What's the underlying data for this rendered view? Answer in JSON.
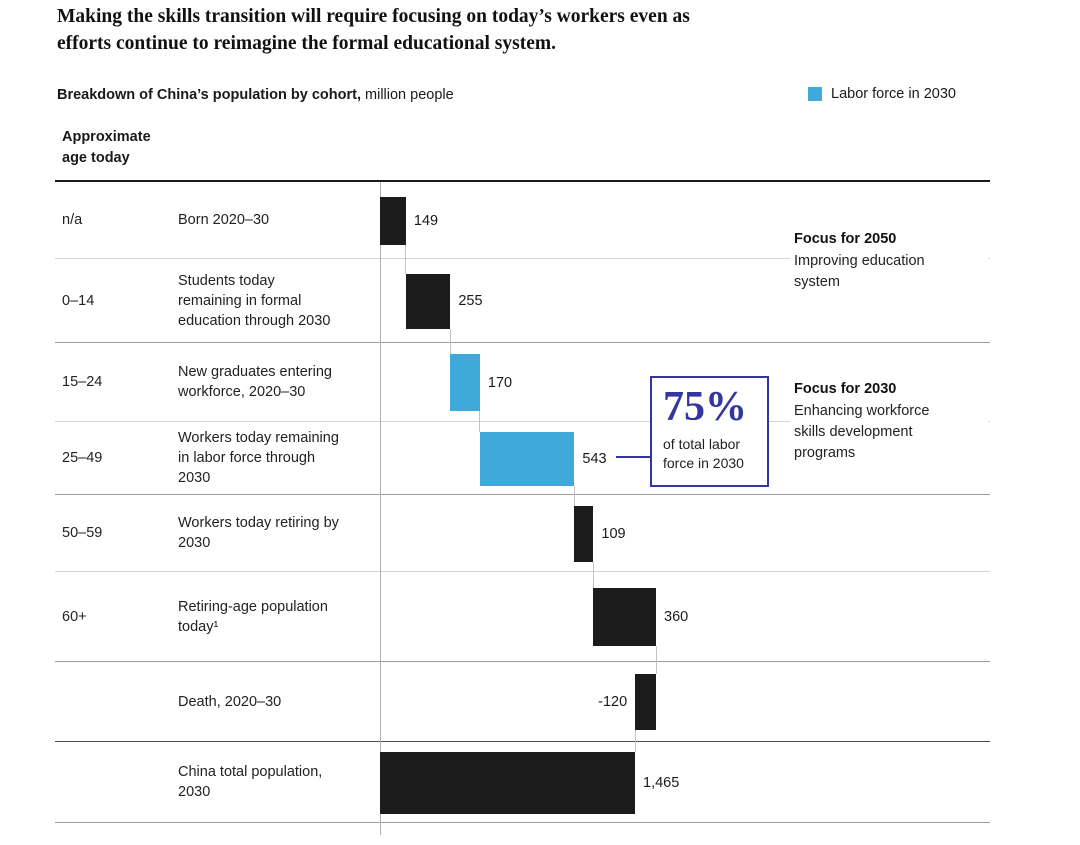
{
  "page": {
    "title": "Making the skills transition will require focusing on today’s workers even as\nefforts continue to reimagine the formal educational system.",
    "subtitle_bold": "Breakdown of China’s population by cohort,",
    "subtitle_regular": " million people",
    "legend": {
      "label": "Labor force in 2030",
      "color": "#3fa9dc"
    },
    "col_header": "Approximate\nage today"
  },
  "chart_data": {
    "type": "bar",
    "subtype": "waterfall",
    "title": "Breakdown of China's population by cohort",
    "unit": "million people",
    "colors": {
      "black": "#1b1b1b",
      "blue": "#3fa9dc"
    },
    "axis_baseline": 0,
    "total": 1465,
    "rows": [
      {
        "age": "n/a",
        "label": "Born 2020–30",
        "value": 149,
        "display": "149",
        "color": "black",
        "kind": "increment"
      },
      {
        "age": "0–14",
        "label": "Students today\nremaining in formal\neducation through 2030",
        "value": 255,
        "display": "255",
        "color": "black",
        "kind": "increment"
      },
      {
        "age": "15–24",
        "label": "New graduates entering\nworkforce, 2020–30",
        "value": 170,
        "display": "170",
        "color": "blue",
        "kind": "increment"
      },
      {
        "age": "25–49",
        "label": "Workers today remaining\nin labor force through\n2030",
        "value": 543,
        "display": "543",
        "color": "blue",
        "kind": "increment"
      },
      {
        "age": "50–59",
        "label": "Workers today retiring by\n2030",
        "value": 109,
        "display": "109",
        "color": "black",
        "kind": "increment"
      },
      {
        "age": "60+",
        "label": "Retiring-age population\ntoday¹",
        "value": 360,
        "display": "360",
        "color": "black",
        "kind": "increment"
      },
      {
        "age": "",
        "label": "Death, 2020–30",
        "value": -120,
        "display": "-120",
        "color": "black",
        "kind": "decrement"
      },
      {
        "age": "",
        "label": "China total population,\n2030",
        "value": 1465,
        "display": "1,465",
        "color": "black",
        "kind": "total"
      }
    ]
  },
  "annotations": {
    "focus_2050": {
      "heading": "Focus for 2050",
      "body": "Improving education\nsystem"
    },
    "focus_2030": {
      "heading": "Focus for 2030",
      "body": "Enhancing workforce\nskills development\nprograms"
    },
    "callout": {
      "big": "75%",
      "caption": "of total labor\nforce in 2030"
    }
  }
}
